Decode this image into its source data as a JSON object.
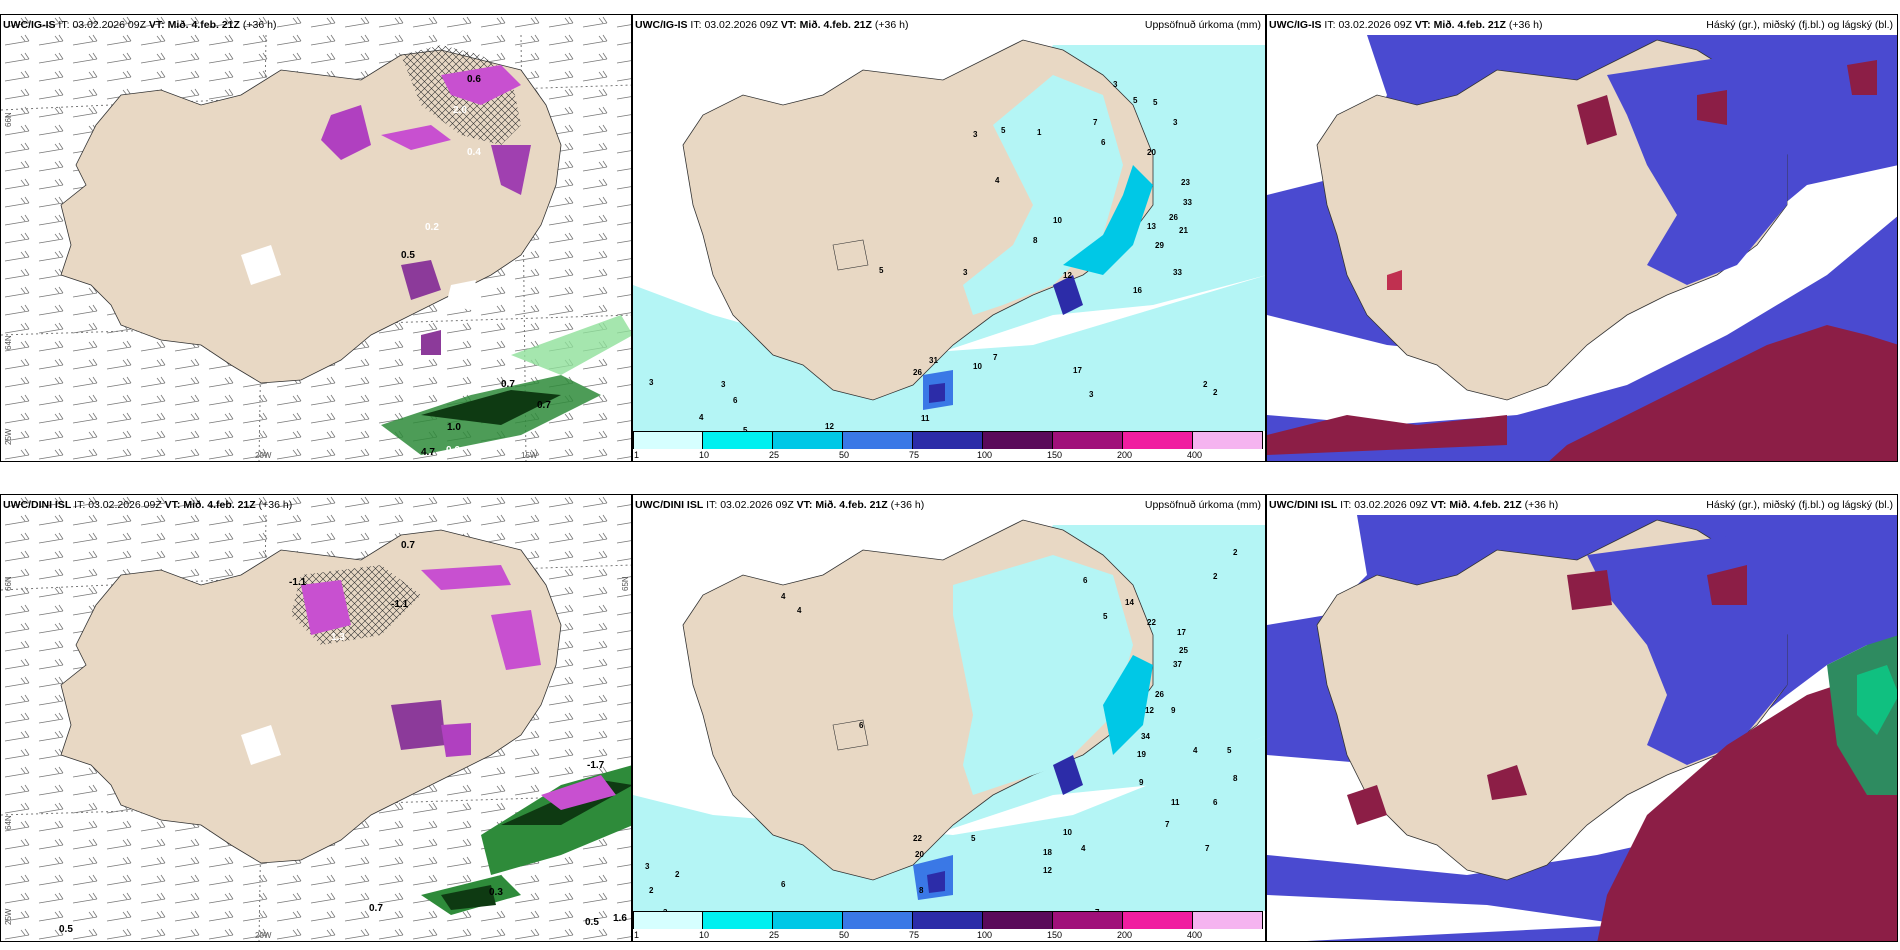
{
  "panels": [
    {
      "model": "UWC/IG-IS",
      "it_label": "IT:",
      "it": "03.02.2026 09Z",
      "vt_label": "VT:",
      "vt": "Mið. 4.feb. 21Z",
      "lead": "(+36 h)",
      "right": ""
    },
    {
      "model": "UWC/IG-IS",
      "it_label": "IT:",
      "it": "03.02.2026 09Z",
      "vt_label": "VT:",
      "vt": "Mið. 4.feb. 21Z",
      "lead": "(+36 h)",
      "right": "Uppsöfnuð úrkoma (mm)"
    },
    {
      "model": "UWC/IG-IS",
      "it_label": "IT:",
      "it": "03.02.2026 09Z",
      "vt_label": "VT:",
      "vt": "Mið. 4.feb. 21Z",
      "lead": "(+36 h)",
      "right": "Háský (gr.), miðský (fj.bl.) og lágský (bl.)"
    },
    {
      "model": "UWC/DINI ISL",
      "it_label": "IT:",
      "it": "03.02.2026 09Z",
      "vt_label": "VT:",
      "vt": "Mið. 4.feb. 21Z",
      "lead": "(+36 h)",
      "right": ""
    },
    {
      "model": "UWC/DINI ISL",
      "it_label": "IT:",
      "it": "03.02.2026 09Z",
      "vt_label": "VT:",
      "vt": "Mið. 4.feb. 21Z",
      "lead": "(+36 h)",
      "right": "Uppsöfnuð úrkoma (mm)"
    },
    {
      "model": "UWC/DINI ISL",
      "it_label": "IT:",
      "it": "03.02.2026 09Z",
      "vt_label": "VT:",
      "vt": "Mið. 4.feb. 21Z",
      "lead": "(+36 h)",
      "right": "Háský (gr.), miðský (fj.bl.) og lágský (bl.)"
    }
  ],
  "axis_labels": {
    "lat66": "66N",
    "lat64": "64N",
    "lat65": "65N",
    "lon25": "25W",
    "lon20": "20W",
    "lon15": "15W"
  },
  "colorbar": {
    "ticks": [
      "1",
      "10",
      "25",
      "50",
      "75",
      "100",
      "150",
      "200",
      "400"
    ],
    "colors": [
      "#d6ffff",
      "#00f0f0",
      "#00c8e6",
      "#3a78e6",
      "#2c2ca8",
      "#5a0a5a",
      "#a0107a",
      "#f01ea0",
      "#f5b4f0"
    ]
  },
  "precip_labels_top": [
    "3",
    "5",
    "7",
    "5",
    "3",
    "20",
    "23",
    "33",
    "26",
    "13",
    "21",
    "29",
    "33",
    "16",
    "10",
    "8",
    "12",
    "17",
    "31",
    "26",
    "10",
    "7",
    "11",
    "12",
    "5",
    "4",
    "6",
    "3",
    "3",
    "2",
    "2",
    "3",
    "5",
    "1",
    "4",
    "5",
    "6",
    "3",
    "3"
  ],
  "precip_labels_bottom": [
    "2",
    "2",
    "6",
    "14",
    "22",
    "17",
    "25",
    "37",
    "26",
    "12",
    "9",
    "34",
    "19",
    "4",
    "5",
    "8",
    "11",
    "9",
    "6",
    "7",
    "7",
    "22",
    "20",
    "5",
    "8",
    "12",
    "10",
    "18",
    "4",
    "2",
    "3",
    "3",
    "6",
    "2",
    "4",
    "4",
    "6",
    "5",
    "7"
  ],
  "temp_labels_top": [
    "0.6",
    "2.0",
    "0.5",
    "0.7",
    "0.7",
    "1.0",
    "4.7",
    "0.6",
    "0.2",
    "0.4"
  ],
  "temp_labels_bottom": [
    "0.7",
    "-1.1",
    "-1.1",
    "1.3",
    "0.7",
    "0.5",
    "0.5",
    "1.6",
    "-1.7",
    "0.3"
  ],
  "colors": {
    "land": "#e8d8c4",
    "sea": "#ffffff",
    "cloud_blue": "#4a4ad0",
    "cloud_red": "#8c1e46",
    "precip_light": "#b4f5f5"
  }
}
